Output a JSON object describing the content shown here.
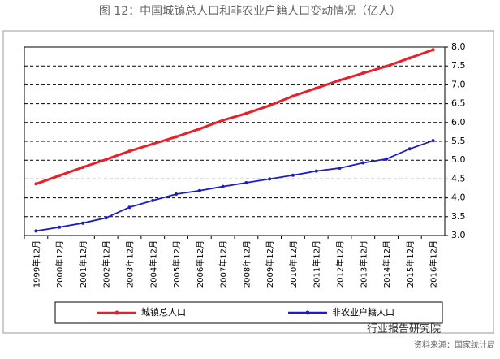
{
  "chart_data": {
    "type": "line",
    "title": "图 12：中国城镇总人口和非农业户籍人口变动情况（亿人）",
    "categories": [
      "1999年12月",
      "2000年12月",
      "2001年12月",
      "2002年12月",
      "2003年12月",
      "2004年12月",
      "2005年12月",
      "2006年12月",
      "2007年12月",
      "2008年12月",
      "2009年12月",
      "2010年12月",
      "2011年12月",
      "2012年12月",
      "2013年12月",
      "2014年12月",
      "2015年12月",
      "2016年12月"
    ],
    "series": [
      {
        "name": "城镇总人口",
        "color": "#e8202a",
        "values": [
          4.37,
          4.59,
          4.81,
          5.02,
          5.24,
          5.43,
          5.62,
          5.83,
          6.06,
          6.24,
          6.45,
          6.7,
          6.91,
          7.12,
          7.31,
          7.49,
          7.71,
          7.93
        ]
      },
      {
        "name": "非农业户籍人口",
        "color": "#1c1cc8",
        "values": [
          3.12,
          3.22,
          3.33,
          3.47,
          3.75,
          3.93,
          4.1,
          4.19,
          4.3,
          4.4,
          4.5,
          4.6,
          4.71,
          4.79,
          4.93,
          5.03,
          5.3,
          5.52
        ]
      }
    ],
    "ylim": [
      3.0,
      8.0
    ],
    "yticks": [
      {
        "value": 3,
        "label": "3.0"
      },
      3.5,
      {
        "value": 4,
        "label": "4.0"
      },
      4.5,
      {
        "value": 5,
        "label": "5.0"
      },
      5.5,
      {
        "value": 6,
        "label": "6.0"
      },
      6.5,
      {
        "value": 7,
        "label": "7.0"
      },
      7.5,
      {
        "value": 8,
        "label": "8.0"
      }
    ],
    "grid": true,
    "watermark": "行业报告研究院",
    "source": "资料来源：国家统计局"
  }
}
